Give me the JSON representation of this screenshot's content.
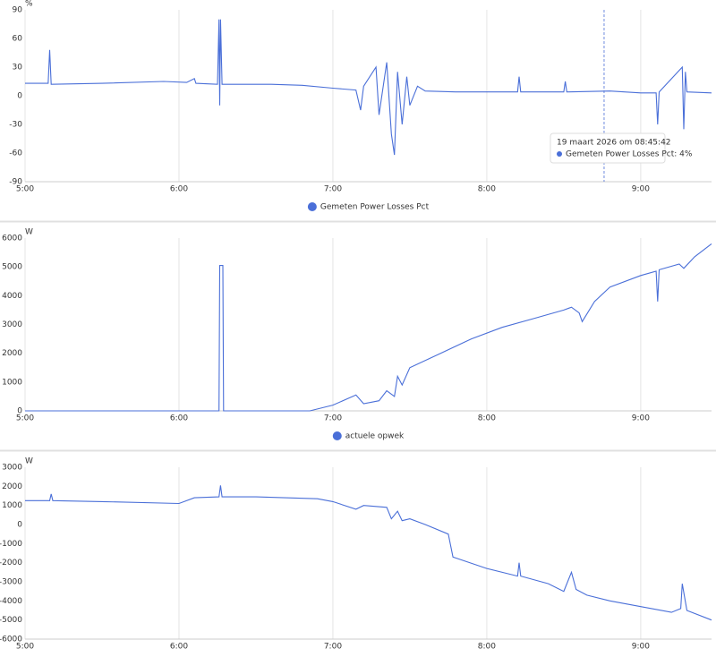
{
  "chart_data": [
    {
      "type": "line",
      "y_label": "%",
      "grid": "x",
      "xlim": [
        5,
        9.46
      ],
      "ylim": [
        -90,
        90
      ],
      "xticks": [
        {
          "value": 5,
          "label": "5:00"
        },
        {
          "value": 6,
          "label": "6:00"
        },
        {
          "value": 7,
          "label": "7:00"
        },
        {
          "value": 8,
          "label": "8:00"
        },
        {
          "value": 9,
          "label": "9:00"
        }
      ],
      "yticks": [
        -90,
        -60,
        -30,
        0,
        30,
        60,
        90
      ],
      "x": [
        5.0,
        5.15,
        5.16,
        5.17,
        5.5,
        5.9,
        6.05,
        6.1,
        6.11,
        6.25,
        6.26,
        6.265,
        6.27,
        6.28,
        6.6,
        6.8,
        7.0,
        7.15,
        7.18,
        7.2,
        7.28,
        7.3,
        7.35,
        7.38,
        7.4,
        7.42,
        7.45,
        7.48,
        7.5,
        7.55,
        7.6,
        7.8,
        8.0,
        8.2,
        8.21,
        8.22,
        8.5,
        8.51,
        8.52,
        8.8,
        9.0,
        9.1,
        9.11,
        9.12,
        9.27,
        9.28,
        9.29,
        9.3,
        9.46
      ],
      "series": [
        {
          "name": "Gemeten Power Losses Pct",
          "color": "#4a6fd8",
          "values": [
            13,
            13,
            48,
            12,
            13,
            15,
            14,
            18,
            13,
            12,
            80,
            -10,
            80,
            12,
            12,
            11,
            8,
            6,
            -15,
            10,
            30,
            -20,
            35,
            -40,
            -62,
            25,
            -30,
            20,
            -10,
            10,
            5,
            4,
            4,
            4,
            20,
            4,
            4,
            15,
            4,
            5,
            3,
            3,
            -30,
            4,
            30,
            -35,
            25,
            4,
            3
          ]
        }
      ],
      "tooltip": {
        "x": 8.762,
        "label": "19 maart 2026 om 08:45:42",
        "series_label": "Gemeten Power Losses Pct: 4%"
      }
    },
    {
      "type": "line",
      "y_label": "W",
      "grid": "x",
      "xlim": [
        5,
        9.46
      ],
      "ylim": [
        0,
        6000
      ],
      "xticks": [
        {
          "value": 5,
          "label": "5:00"
        },
        {
          "value": 6,
          "label": "6:00"
        },
        {
          "value": 7,
          "label": "7:00"
        },
        {
          "value": 8,
          "label": "8:00"
        },
        {
          "value": 9,
          "label": "9:00"
        }
      ],
      "yticks": [
        0,
        1000,
        2000,
        3000,
        4000,
        5000,
        6000
      ],
      "x": [
        5.0,
        6.26,
        6.265,
        6.285,
        6.29,
        6.85,
        7.0,
        7.15,
        7.2,
        7.3,
        7.35,
        7.4,
        7.42,
        7.45,
        7.5,
        7.7,
        7.9,
        8.1,
        8.3,
        8.5,
        8.55,
        8.6,
        8.62,
        8.7,
        8.8,
        9.0,
        9.1,
        9.11,
        9.12,
        9.25,
        9.28,
        9.35,
        9.46
      ],
      "series": [
        {
          "name": "actuele opwek",
          "color": "#4a6fd8",
          "values": [
            0,
            0,
            5050,
            5050,
            0,
            0,
            200,
            550,
            250,
            350,
            700,
            500,
            1200,
            900,
            1500,
            2000,
            2500,
            2900,
            3200,
            3500,
            3600,
            3400,
            3100,
            3800,
            4300,
            4700,
            4850,
            3800,
            4900,
            5100,
            4950,
            5350,
            5800
          ]
        }
      ]
    },
    {
      "type": "line",
      "y_label": "W",
      "grid": "x",
      "xlim": [
        5,
        9.46
      ],
      "ylim": [
        -6000,
        3000
      ],
      "xticks": [
        {
          "value": 5,
          "label": "5:00"
        },
        {
          "value": 6,
          "label": "6:00"
        },
        {
          "value": 7,
          "label": "7:00"
        },
        {
          "value": 8,
          "label": "8:00"
        },
        {
          "value": 9,
          "label": "9:00"
        }
      ],
      "yticks": [
        -6000,
        -5000,
        -4000,
        -3000,
        -2000,
        -1000,
        0,
        1000,
        2000,
        3000
      ],
      "x": [
        5.0,
        5.16,
        5.17,
        5.18,
        5.5,
        6.0,
        6.1,
        6.26,
        6.27,
        6.28,
        6.5,
        6.9,
        7.0,
        7.15,
        7.2,
        7.35,
        7.38,
        7.42,
        7.45,
        7.5,
        7.6,
        7.75,
        7.78,
        8.0,
        8.2,
        8.21,
        8.22,
        8.4,
        8.5,
        8.55,
        8.58,
        8.65,
        8.8,
        9.0,
        9.2,
        9.26,
        9.27,
        9.3,
        9.46
      ],
      "series": [
        {
          "color": "#4a6fd8",
          "values": [
            1250,
            1250,
            1600,
            1250,
            1200,
            1100,
            1400,
            1450,
            2050,
            1450,
            1450,
            1350,
            1200,
            800,
            1000,
            900,
            300,
            700,
            200,
            300,
            0,
            -500,
            -1700,
            -2300,
            -2700,
            -2000,
            -2700,
            -3100,
            -3500,
            -2500,
            -3400,
            -3700,
            -4000,
            -4300,
            -4600,
            -4400,
            -3100,
            -4500,
            -5000
          ]
        }
      ]
    }
  ]
}
